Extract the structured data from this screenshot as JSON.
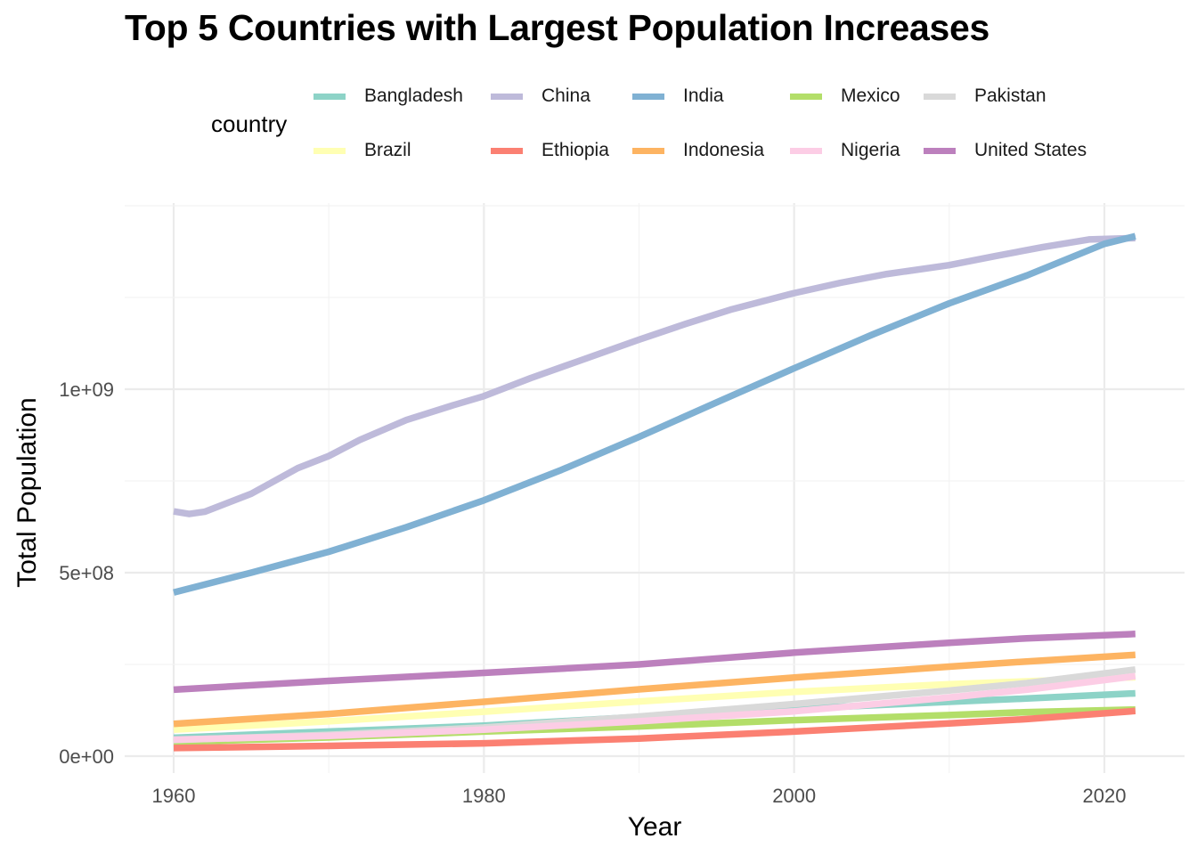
{
  "chart_data": {
    "type": "line",
    "title": "Top 5 Countries with Largest Population Increases",
    "xlabel": "Year",
    "ylabel": "Total Population",
    "legend_title": "country",
    "legend_position": "top",
    "grid": true,
    "xlim": [
      1958,
      2025
    ],
    "ylim": [
      -30000000,
      1490000000
    ],
    "x_ticks": [
      1960,
      1980,
      2000,
      2020
    ],
    "x_tick_labels": [
      "1960",
      "1980",
      "2000",
      "2020"
    ],
    "y_ticks": [
      0,
      500000000,
      1000000000
    ],
    "y_tick_labels": [
      "0e+00",
      "5e+08",
      "1e+09"
    ],
    "series": [
      {
        "name": "Bangladesh",
        "color": "#8DD3C7",
        "x": [
          1960,
          1970,
          1980,
          1990,
          2000,
          2010,
          2015,
          2022
        ],
        "values": [
          50000000,
          67000000,
          83000000,
          107000000,
          129000000,
          148000000,
          157000000,
          171000000
        ]
      },
      {
        "name": "Brazil",
        "color": "#FFFFB3",
        "x": [
          1960,
          1970,
          1980,
          1990,
          2000,
          2010,
          2015,
          2022
        ],
        "values": [
          72000000,
          95000000,
          121000000,
          149000000,
          175000000,
          196000000,
          204000000,
          215000000
        ]
      },
      {
        "name": "China",
        "color": "#BEBADA",
        "x": [
          1960,
          1961,
          1962,
          1965,
          1968,
          1970,
          1972,
          1975,
          1978,
          1980,
          1983,
          1986,
          1990,
          1993,
          1996,
          2000,
          2003,
          2006,
          2010,
          2013,
          2016,
          2019,
          2022
        ],
        "values": [
          667000000,
          660000000,
          666000000,
          715000000,
          785000000,
          818000000,
          862000000,
          916000000,
          956000000,
          981000000,
          1030000000,
          1075000000,
          1135000000,
          1178000000,
          1218000000,
          1262000000,
          1290000000,
          1314000000,
          1338000000,
          1363000000,
          1387000000,
          1408000000,
          1412000000
        ]
      },
      {
        "name": "Ethiopia",
        "color": "#FB8072",
        "x": [
          1960,
          1970,
          1980,
          1990,
          2000,
          2010,
          2015,
          2022
        ],
        "values": [
          22000000,
          28000000,
          35000000,
          48000000,
          67000000,
          89000000,
          101000000,
          123000000
        ]
      },
      {
        "name": "India",
        "color": "#80B1D3",
        "x": [
          1960,
          1965,
          1970,
          1975,
          1980,
          1985,
          1990,
          1995,
          2000,
          2005,
          2010,
          2015,
          2020,
          2022
        ],
        "values": [
          446000000,
          500000000,
          557000000,
          624000000,
          697000000,
          780000000,
          870000000,
          964000000,
          1057000000,
          1148000000,
          1234000000,
          1310000000,
          1396000000,
          1417000000
        ]
      },
      {
        "name": "Indonesia",
        "color": "#FDB462",
        "x": [
          1960,
          1970,
          1980,
          1990,
          2000,
          2010,
          2015,
          2022
        ],
        "values": [
          88000000,
          115000000,
          148000000,
          182000000,
          214000000,
          244000000,
          258000000,
          276000000
        ]
      },
      {
        "name": "Mexico",
        "color": "#B3DE69",
        "x": [
          1960,
          1970,
          1980,
          1990,
          2000,
          2010,
          2015,
          2022
        ],
        "values": [
          38000000,
          51000000,
          67000000,
          81000000,
          98000000,
          112000000,
          120000000,
          127000000
        ]
      },
      {
        "name": "Nigeria",
        "color": "#FCCDE5",
        "x": [
          1960,
          1970,
          1980,
          1990,
          2000,
          2010,
          2015,
          2022
        ],
        "values": [
          45000000,
          55000000,
          72000000,
          95000000,
          122000000,
          160000000,
          181000000,
          218000000
        ]
      },
      {
        "name": "Pakistan",
        "color": "#D9D9D9",
        "x": [
          1960,
          1970,
          1980,
          1990,
          2000,
          2010,
          2015,
          2022
        ],
        "values": [
          44000000,
          58000000,
          78000000,
          108000000,
          142000000,
          179000000,
          199000000,
          236000000
        ]
      },
      {
        "name": "United States",
        "color": "#BC80BD",
        "x": [
          1960,
          1970,
          1980,
          1990,
          2000,
          2010,
          2015,
          2022
        ],
        "values": [
          181000000,
          205000000,
          227000000,
          250000000,
          282000000,
          309000000,
          321000000,
          333000000
        ]
      }
    ]
  }
}
